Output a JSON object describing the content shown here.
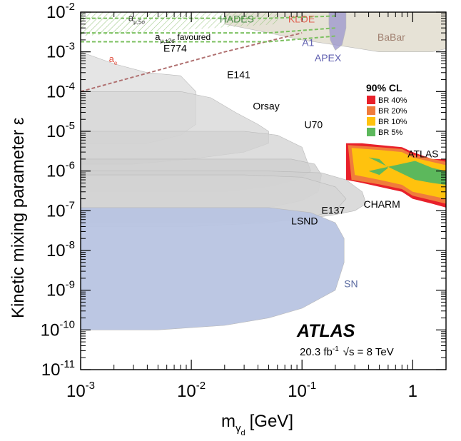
{
  "chart_data": {
    "type": "area",
    "x_scale": "log",
    "y_scale": "log",
    "xlim": [
      0.001,
      2
    ],
    "ylim": [
      1e-11,
      0.01
    ],
    "xlabel": "m",
    "xlabel_sub": "γ",
    "xlabel_subsub": "d",
    "xlabel_unit": "[GeV]",
    "ylabel": "Kinetic mixing parameter ε",
    "x_ticks": [
      {
        "value": 0.001,
        "base": "10",
        "exp": "-3"
      },
      {
        "value": 0.01,
        "base": "10",
        "exp": "-2"
      },
      {
        "value": 0.1,
        "base": "10",
        "exp": "-1"
      },
      {
        "value": 1,
        "base": "1",
        "exp": ""
      }
    ],
    "y_ticks": [
      {
        "value": 0.01,
        "base": "10",
        "exp": "-2"
      },
      {
        "value": 0.001,
        "base": "10",
        "exp": "-3"
      },
      {
        "value": 0.0001,
        "base": "10",
        "exp": "-4"
      },
      {
        "value": 1e-05,
        "base": "10",
        "exp": "-5"
      },
      {
        "value": 1e-06,
        "base": "10",
        "exp": "-6"
      },
      {
        "value": 1e-07,
        "base": "10",
        "exp": "-7"
      },
      {
        "value": 1e-08,
        "base": "10",
        "exp": "-8"
      },
      {
        "value": 1e-09,
        "base": "10",
        "exp": "-9"
      },
      {
        "value": 1e-10,
        "base": "10",
        "exp": "-10"
      },
      {
        "value": 1e-11,
        "base": "10",
        "exp": "-11"
      }
    ],
    "grid": false,
    "experiment_label": "ATLAS",
    "lumi_text": "20.3 fb",
    "lumi_exp": "-1",
    "energy_text": "√s = 8 TeV",
    "legend": {
      "title": "90% CL",
      "placement": "right",
      "entries": [
        {
          "label": "BR 40%",
          "color": "#e8202a"
        },
        {
          "label": "BR 20%",
          "color": "#f07c3c"
        },
        {
          "label": "BR 10%",
          "color": "#ffc20e"
        },
        {
          "label": "BR  5%",
          "color": "#5cb85c"
        }
      ]
    },
    "region_labels": [
      {
        "text": "E774",
        "x": 0.0056,
        "y": 0.001,
        "color": "#000000"
      },
      {
        "text": "E141",
        "x": 0.021,
        "y": 0.00022,
        "color": "#000000"
      },
      {
        "text": "Orsay",
        "x": 0.036,
        "y": 3.5e-05,
        "color": "#000000"
      },
      {
        "text": "U70",
        "x": 0.105,
        "y": 1.2e-05,
        "color": "#000000"
      },
      {
        "text": "ATLAS",
        "x": 0.9,
        "y": 2.2e-06,
        "color": "#000000"
      },
      {
        "text": "CHARM",
        "x": 0.36,
        "y": 1.2e-07,
        "color": "#000000"
      },
      {
        "text": "E137",
        "x": 0.15,
        "y": 8.5e-08,
        "color": "#000000"
      },
      {
        "text": "LSND",
        "x": 0.08,
        "y": 4.5e-08,
        "color": "#000000"
      },
      {
        "text": "SN",
        "x": 0.24,
        "y": 1.2e-09,
        "color": "#5a6aa0"
      },
      {
        "text": "HADES",
        "x": 0.018,
        "y": 0.0055,
        "color": "#4a8a4a"
      },
      {
        "text": "KLOE",
        "x": 0.075,
        "y": 0.0055,
        "color": "#e06050"
      },
      {
        "text": "A1",
        "x": 0.1,
        "y": 0.0014,
        "color": "#6060b0"
      },
      {
        "text": "APEX",
        "x": 0.13,
        "y": 0.00058,
        "color": "#6060b0"
      },
      {
        "text": "BaBar",
        "x": 0.48,
        "y": 0.0019,
        "color": "#a08070"
      },
      {
        "text": "a",
        "sub": "e",
        "x": 0.0018,
        "y": 0.00055,
        "color": "#e05040"
      },
      {
        "text": "a",
        "sub": "μ,5σ",
        "x": 0.0027,
        "y": 0.006,
        "color": "#333333"
      },
      {
        "text": "a",
        "sub": "μ,±2σ",
        "suffix": " favoured",
        "x": 0.0047,
        "y": 0.002,
        "color": "#000000"
      }
    ],
    "series": [
      {
        "label": "E774",
        "color": "#dcdcdc",
        "boundary": [
          [
            0.001,
            0.001
          ],
          [
            0.002,
            0.0005
          ],
          [
            0.004,
            0.0003
          ],
          [
            0.008,
            0.00025
          ],
          [
            0.011,
            0.0001
          ],
          [
            0.011,
            1.5e-05
          ],
          [
            0.008,
            8e-06
          ],
          [
            0.004,
            5e-06
          ],
          [
            0.002,
            5e-06
          ],
          [
            0.001,
            5e-06
          ]
        ]
      },
      {
        "label": "E141",
        "color": "#d6d6d6",
        "boundary": [
          [
            0.001,
            0.0001
          ],
          [
            0.004,
            0.0001
          ],
          [
            0.008,
            0.0001
          ],
          [
            0.015,
            7e-05
          ],
          [
            0.025,
            3e-05
          ],
          [
            0.04,
            1.5e-05
          ],
          [
            0.05,
            1e-05
          ],
          [
            0.05,
            5e-06
          ],
          [
            0.03,
            3e-06
          ],
          [
            0.01,
            2e-06
          ],
          [
            0.003,
            1.5e-06
          ],
          [
            0.001,
            1.5e-06
          ]
        ]
      },
      {
        "label": "Orsay",
        "color": "#d2d2d2",
        "boundary": [
          [
            0.001,
            1e-05
          ],
          [
            0.01,
            1e-05
          ],
          [
            0.03,
            1e-05
          ],
          [
            0.06,
            8e-06
          ],
          [
            0.1,
            4e-06
          ],
          [
            0.12,
            1e-06
          ],
          [
            0.09,
            6e-07
          ],
          [
            0.05,
            4e-07
          ],
          [
            0.02,
            3e-07
          ],
          [
            0.005,
            3e-07
          ],
          [
            0.001,
            3e-07
          ]
        ]
      },
      {
        "label": "U70",
        "color": "#cecece",
        "boundary": [
          [
            0.001,
            2e-06
          ],
          [
            0.03,
            2e-06
          ],
          [
            0.08,
            2e-06
          ],
          [
            0.13,
            1.5e-06
          ],
          [
            0.15,
            8e-07
          ],
          [
            0.14,
            3e-07
          ],
          [
            0.1,
            1.8e-07
          ],
          [
            0.05,
            1.2e-07
          ],
          [
            0.02,
            1e-07
          ],
          [
            0.005,
            1e-07
          ],
          [
            0.001,
            1e-07
          ]
        ]
      },
      {
        "label": "CHARM",
        "color": "#cfcfcf",
        "boundary": [
          [
            0.001,
            1e-06
          ],
          [
            0.05,
            1e-06
          ],
          [
            0.15,
            9e-07
          ],
          [
            0.25,
            6e-07
          ],
          [
            0.35,
            3e-07
          ],
          [
            0.38,
            1.5e-07
          ],
          [
            0.3,
            1e-07
          ],
          [
            0.2,
            8e-08
          ],
          [
            0.1,
            6e-08
          ],
          [
            0.03,
            5e-08
          ],
          [
            0.001,
            5e-08
          ]
        ]
      },
      {
        "label": "E137",
        "color": "#d4d4d4",
        "boundary": [
          [
            0.001,
            8e-07
          ],
          [
            0.03,
            8e-07
          ],
          [
            0.1,
            7e-07
          ],
          [
            0.2,
            4e-07
          ],
          [
            0.25,
            2e-07
          ],
          [
            0.2,
            1e-07
          ],
          [
            0.12,
            7e-08
          ],
          [
            0.05,
            5e-08
          ],
          [
            0.01,
            4e-08
          ],
          [
            0.001,
            4e-08
          ]
        ]
      },
      {
        "label": "SN",
        "color": "#b8c4e2",
        "boundary": [
          [
            0.001,
            1.2e-07
          ],
          [
            0.01,
            1.2e-07
          ],
          [
            0.05,
            1.2e-07
          ],
          [
            0.12,
            9e-08
          ],
          [
            0.2,
            5e-08
          ],
          [
            0.24,
            2e-08
          ],
          [
            0.24,
            5e-09
          ],
          [
            0.2,
            1e-09
          ],
          [
            0.1,
            3.5e-10
          ],
          [
            0.05,
            2e-10
          ],
          [
            0.02,
            1.3e-10
          ],
          [
            0.005,
            1e-10
          ],
          [
            0.001,
            1e-10
          ]
        ]
      },
      {
        "label": "BaBar",
        "color": "#ddd8c8",
        "boundary": [
          [
            0.02,
            0.01
          ],
          [
            2,
            0.01
          ],
          [
            2,
            0.0012
          ],
          [
            1.5,
            0.001
          ],
          [
            1,
            0.001
          ],
          [
            0.5,
            0.001
          ],
          [
            0.2,
            0.0015
          ],
          [
            0.1,
            0.002
          ],
          [
            0.05,
            0.003
          ],
          [
            0.02,
            0.005
          ]
        ]
      },
      {
        "label": "APEX",
        "color": "#9a94cc",
        "boundary": [
          [
            0.175,
            0.01
          ],
          [
            0.25,
            0.01
          ],
          [
            0.25,
            0.004
          ],
          [
            0.23,
            0.0015
          ],
          [
            0.2,
            0.0011
          ],
          [
            0.18,
            0.002
          ],
          [
            0.175,
            0.005
          ]
        ]
      },
      {
        "label": "ATLAS BR 40%",
        "color": "#e8202a",
        "boundary": [
          [
            0.25,
            5e-06
          ],
          [
            0.35,
            5e-06
          ],
          [
            0.5,
            4.5e-06
          ],
          [
            0.8,
            4e-06
          ],
          [
            1,
            3e-06
          ],
          [
            1.5,
            2e-06
          ],
          [
            2,
            2e-06
          ],
          [
            2,
            1.2e-07
          ],
          [
            1.5,
            1.5e-07
          ],
          [
            1,
            2e-07
          ],
          [
            0.8,
            3e-07
          ],
          [
            0.5,
            4e-07
          ],
          [
            0.35,
            5e-07
          ],
          [
            0.25,
            6e-07
          ]
        ]
      },
      {
        "label": "ATLAS BR 20%",
        "color": "#f07c3c",
        "boundary": [
          [
            0.26,
            4.5e-06
          ],
          [
            0.5,
            4e-06
          ],
          [
            0.8,
            3.6e-06
          ],
          [
            1,
            2.6e-06
          ],
          [
            2,
            1.7e-06
          ],
          [
            2,
            1.5e-07
          ],
          [
            1,
            2.4e-07
          ],
          [
            0.8,
            3.5e-07
          ],
          [
            0.5,
            4.6e-07
          ],
          [
            0.28,
            6e-07
          ]
        ]
      },
      {
        "label": "ATLAS BR 10%",
        "color": "#ffc20e",
        "boundary": [
          [
            0.28,
            3.8e-06
          ],
          [
            0.5,
            3.4e-06
          ],
          [
            0.8,
            3e-06
          ],
          [
            1,
            2.2e-06
          ],
          [
            2,
            1.4e-06
          ],
          [
            2,
            2e-07
          ],
          [
            1,
            3e-07
          ],
          [
            0.8,
            4.5e-07
          ],
          [
            0.5,
            6e-07
          ],
          [
            0.3,
            8e-07
          ]
        ]
      },
      {
        "label": "ATLAS BR 5%",
        "color": "#5cb85c",
        "boundary": [
          [
            0.4,
            2.2e-06
          ],
          [
            0.5,
            2e-06
          ],
          [
            0.6,
            1.2e-06
          ],
          [
            0.5,
            8e-07
          ],
          [
            0.4,
            1e-06
          ],
          [
            1.05,
            1.8e-06
          ],
          [
            1.5,
            1.2e-06
          ],
          [
            2,
            1e-06
          ],
          [
            2,
            4.5e-07
          ],
          [
            1.5,
            5e-07
          ],
          [
            1.05,
            6e-07
          ]
        ]
      }
    ],
    "reference_lines": [
      {
        "label": "a_e",
        "color": "#b07070",
        "style": "dashed",
        "points": [
          [
            0.001,
            0.0001
          ],
          [
            0.02,
            0.001
          ],
          [
            0.1,
            0.003
          ]
        ]
      },
      {
        "label": "a_mu favoured upper",
        "color": "#7cc060",
        "style": "dashed",
        "points": [
          [
            0.001,
            0.003
          ],
          [
            0.05,
            0.003
          ],
          [
            0.2,
            0.004
          ]
        ]
      },
      {
        "label": "a_mu favoured lower",
        "color": "#7cc060",
        "style": "dashed",
        "points": [
          [
            0.001,
            0.0018
          ],
          [
            0.05,
            0.0018
          ],
          [
            0.2,
            0.0025
          ]
        ]
      },
      {
        "label": "a_mu 5sigma",
        "color": "#7cc060",
        "style": "dashed",
        "points": [
          [
            0.001,
            0.007
          ],
          [
            0.05,
            0.007
          ],
          [
            0.2,
            0.008
          ]
        ]
      }
    ]
  }
}
